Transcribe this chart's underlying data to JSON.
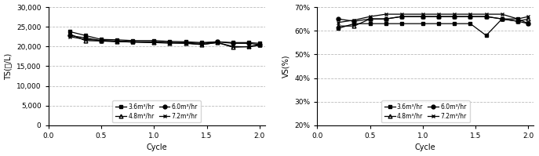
{
  "ts_x": [
    0.2,
    0.35,
    0.5,
    0.65,
    0.8,
    1.0,
    1.15,
    1.3,
    1.45,
    1.6,
    1.75,
    1.9,
    2.0
  ],
  "ts_3_6": [
    23800,
    22800,
    21800,
    21700,
    21500,
    21500,
    21300,
    21200,
    21000,
    21200,
    21000,
    21000,
    20800
  ],
  "ts_4_8": [
    23200,
    21500,
    21400,
    21200,
    21200,
    21000,
    20900,
    20900,
    20500,
    21000,
    19800,
    20000,
    20500
  ],
  "ts_6_0": [
    22800,
    22200,
    21500,
    21400,
    21200,
    21200,
    21000,
    21000,
    20800,
    21200,
    20800,
    20800,
    20500
  ],
  "ts_7_2": [
    22500,
    21800,
    21500,
    21300,
    21100,
    21000,
    20900,
    20800,
    20500,
    21000,
    20000,
    19900,
    20300
  ],
  "vs_x": [
    0.2,
    0.35,
    0.5,
    0.65,
    0.8,
    1.0,
    1.15,
    1.3,
    1.45,
    1.6,
    1.75,
    1.9,
    2.0
  ],
  "vs_3_6": [
    0.61,
    0.63,
    0.63,
    0.63,
    0.63,
    0.63,
    0.63,
    0.63,
    0.63,
    0.58,
    0.65,
    0.65,
    0.63
  ],
  "vs_4_8": [
    0.62,
    0.62,
    0.65,
    0.65,
    0.66,
    0.66,
    0.66,
    0.66,
    0.66,
    0.66,
    0.65,
    0.64,
    0.65
  ],
  "vs_6_0": [
    0.65,
    0.64,
    0.65,
    0.65,
    0.66,
    0.66,
    0.66,
    0.66,
    0.66,
    0.66,
    0.65,
    0.64,
    0.63
  ],
  "vs_7_2": [
    0.635,
    0.645,
    0.66,
    0.67,
    0.67,
    0.67,
    0.67,
    0.67,
    0.67,
    0.67,
    0.67,
    0.65,
    0.66
  ],
  "ts_ylim": [
    0,
    30000
  ],
  "ts_yticks": [
    0,
    5000,
    10000,
    15000,
    20000,
    25000,
    30000
  ],
  "vs_ylim": [
    0.2,
    0.7
  ],
  "vs_yticks": [
    0.2,
    0.3,
    0.4,
    0.5,
    0.6,
    0.7
  ],
  "xlim": [
    0.1,
    2.05
  ],
  "xticks": [
    0.0,
    0.5,
    1.0,
    1.5,
    2.0
  ],
  "xlabel": "Cycle",
  "ts_ylabel": "TS(㏖/L)",
  "vs_ylabel": "VS(%)",
  "legend_labels_col1": [
    "3.6m³/hr",
    "6.0m³/hr"
  ],
  "legend_labels_col2": [
    "4.8m³/hr",
    "7.2m³/hr"
  ],
  "markers": [
    "s",
    "^",
    "o",
    "x"
  ],
  "fillstyles": [
    "full",
    "none",
    "full",
    "full"
  ],
  "grid_color": "#bbbbbb",
  "bg_color": "#ffffff",
  "line_color": "#000000"
}
